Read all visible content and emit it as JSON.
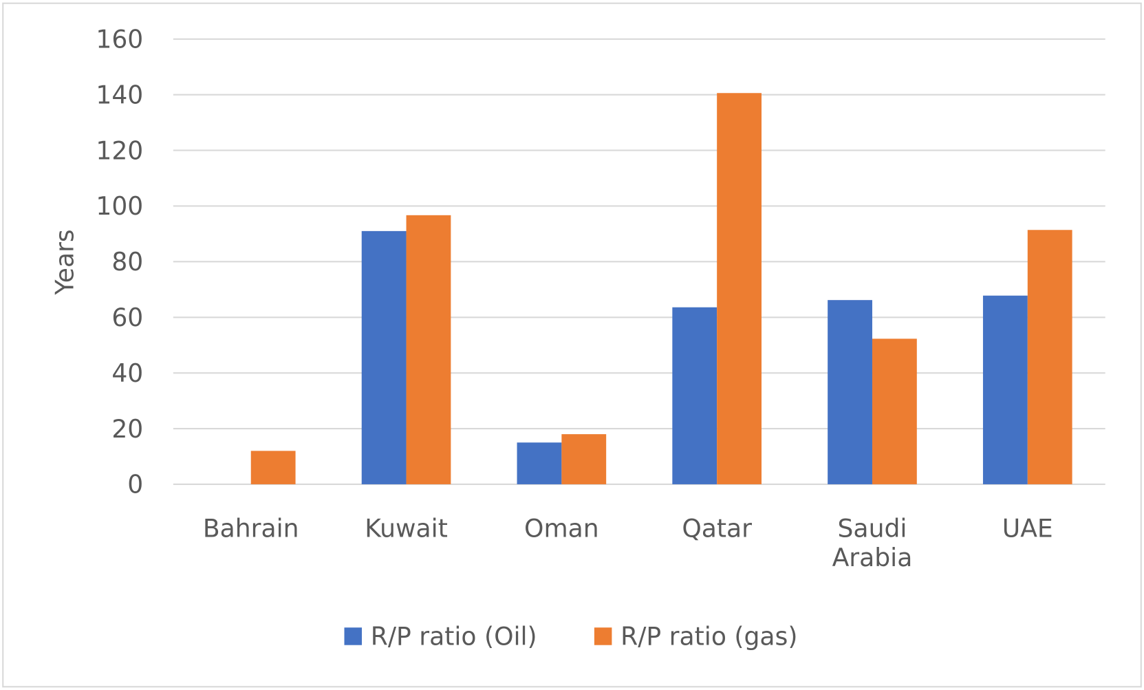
{
  "chart_data": {
    "type": "bar",
    "title": "",
    "xlabel": "",
    "ylabel": "Years",
    "ylim": [
      0,
      160
    ],
    "yticks": [
      0,
      20,
      40,
      60,
      80,
      100,
      120,
      140,
      160
    ],
    "grid": true,
    "legend_position": "bottom",
    "categories": [
      "Bahrain",
      "Kuwait",
      "Oman",
      "Qatar",
      "Saudi Arabia",
      "UAE"
    ],
    "series": [
      {
        "name": "R/P ratio (Oil)",
        "color": "#4472C4",
        "values": [
          0,
          91,
          15,
          63.6,
          66.2,
          67.8
        ]
      },
      {
        "name": "R/P ratio (gas)",
        "color": "#ED7D31",
        "values": [
          12,
          96.7,
          18,
          140.6,
          52.3,
          91.4
        ]
      }
    ]
  }
}
